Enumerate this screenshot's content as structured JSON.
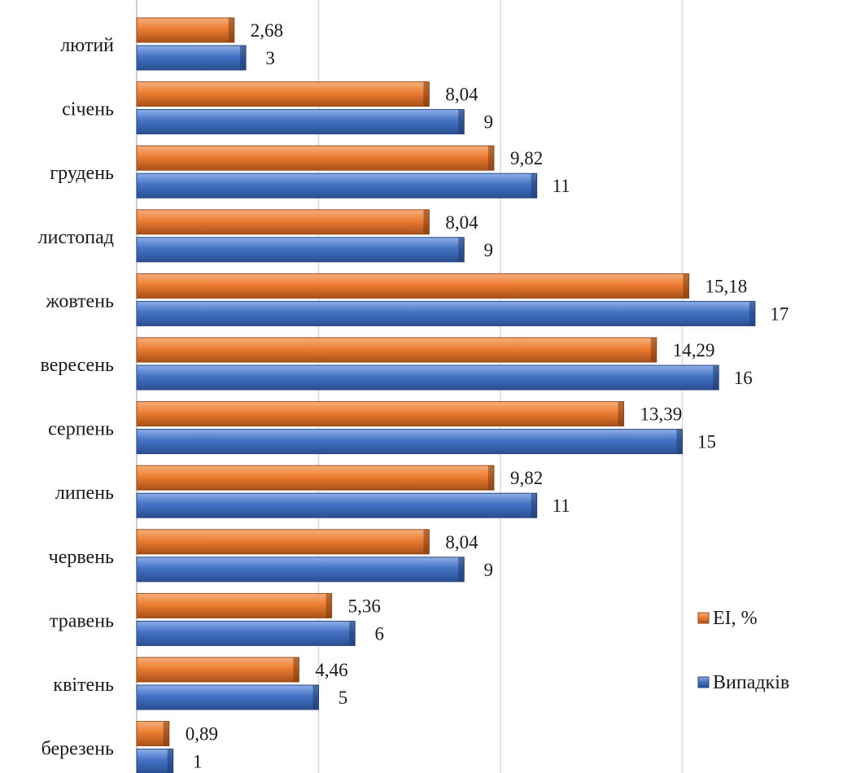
{
  "chart_data": {
    "type": "bar",
    "orientation": "horizontal",
    "categories": [
      "лютий",
      "січень",
      "грудень",
      "листопад",
      "жовтень",
      "вересень",
      "серпень",
      "липень",
      "червень",
      "травень",
      "квітень",
      "березень"
    ],
    "series": [
      {
        "name": "EI, %",
        "color": "#ed7d31",
        "values": [
          2.68,
          8.04,
          9.82,
          8.04,
          15.18,
          14.29,
          13.39,
          9.82,
          8.04,
          5.36,
          4.46,
          0.89
        ],
        "labels": [
          "2,68",
          "8,04",
          "9,82",
          "8,04",
          "15,18",
          "14,29",
          "13,39",
          "9,82",
          "8,04",
          "5,36",
          "4,46",
          "0,89"
        ]
      },
      {
        "name": "Випадків",
        "color": "#4472c4",
        "values": [
          3,
          9,
          11,
          9,
          17,
          16,
          15,
          11,
          9,
          6,
          5,
          1
        ],
        "labels": [
          "3",
          "9",
          "11",
          "9",
          "17",
          "16",
          "15",
          "11",
          "9",
          "6",
          "5",
          "1"
        ]
      }
    ],
    "xlim": [
      0,
      18
    ],
    "grid": true,
    "legend_position": "right"
  }
}
